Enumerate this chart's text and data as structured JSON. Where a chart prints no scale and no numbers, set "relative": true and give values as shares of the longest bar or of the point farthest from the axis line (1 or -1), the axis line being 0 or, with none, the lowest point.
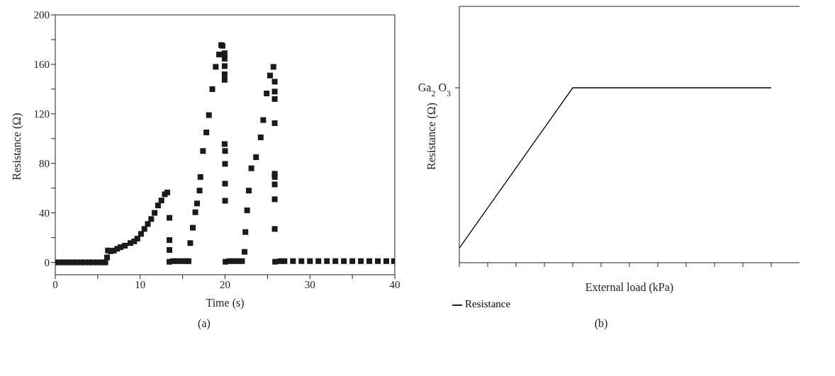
{
  "chart_data": [
    {
      "type": "scatter",
      "xlabel": "Time (s)",
      "ylabel": "Resistance (Ω)",
      "annotations": [
        "(a)"
      ],
      "marker": "square",
      "grid": false,
      "legend": false,
      "xlim": [
        0,
        40
      ],
      "xticks": [
        0,
        {
          "value": 5,
          "label": null
        },
        10,
        {
          "value": 15,
          "label": null
        },
        20,
        {
          "value": 25,
          "label": null
        },
        30,
        {
          "value": 35,
          "label": null
        },
        40
      ],
      "ylim": [
        -10,
        200
      ],
      "yticks": [
        0,
        {
          "value": 20,
          "label": null
        },
        40,
        {
          "value": 60,
          "label": null
        },
        80,
        {
          "value": 100,
          "label": null
        },
        120,
        {
          "value": 140,
          "label": null
        },
        160,
        {
          "value": 180,
          "label": null
        },
        200
      ],
      "series": [
        {
          "color": "#1a1a1a",
          "x": [
            0,
            0.5,
            1,
            1.5,
            2,
            2.5,
            3,
            3.5,
            4,
            4.5,
            5,
            5.5,
            5.9,
            6.1,
            6.2,
            6.5,
            6.9,
            7.3,
            7.7,
            8.2,
            8.85,
            9.3,
            9.67,
            10.1,
            10.5,
            10.9,
            11.3,
            11.7,
            12.1,
            12.5,
            12.9,
            13.2,
            13.45,
            13.45,
            13.45,
            13.45,
            13.9,
            14.4,
            14.9,
            15.4,
            15.7,
            15.9,
            16.2,
            16.5,
            16.7,
            17.0,
            17.1,
            17.4,
            17.8,
            18.1,
            18.5,
            18.9,
            19.3,
            19.55,
            19.7,
            19.95,
            19.95,
            19.95,
            19.95,
            19.95,
            19.95,
            20,
            20,
            20,
            20,
            20.05,
            20.5,
            21,
            21.5,
            22,
            22.3,
            22.4,
            22.6,
            22.8,
            23.1,
            23.65,
            24.2,
            24.5,
            24.9,
            25.3,
            25.7,
            25.85,
            25.85,
            25.85,
            25.85,
            25.85,
            25.85,
            25.85,
            25.85,
            25.85,
            25.9,
            26.5,
            27,
            28,
            29,
            30,
            31,
            32,
            33,
            34,
            35,
            36,
            37,
            38,
            39,
            39.9
          ],
          "values": [
            0,
            0,
            0,
            0,
            0,
            0,
            0,
            0,
            0,
            0,
            0,
            0,
            0,
            4,
            9.6,
            9,
            9.5,
            11,
            12.3,
            13.5,
            15.6,
            17,
            19.2,
            23,
            27,
            31,
            35,
            40,
            46,
            50,
            55,
            56.5,
            36,
            18,
            10,
            0.5,
            1,
            1,
            1,
            1,
            1,
            15.6,
            28,
            40.5,
            47.6,
            58,
            69,
            90,
            105,
            119,
            140,
            158,
            168,
            175.6,
            175,
            169,
            164.6,
            158.6,
            152,
            147.5,
            95.6,
            90,
            79.6,
            63.6,
            49.8,
            0.5,
            1,
            1,
            1,
            1,
            8.5,
            24.5,
            42,
            58,
            76,
            85,
            101,
            115,
            136.5,
            151,
            158,
            146,
            138,
            132,
            112.5,
            71.6,
            69,
            63,
            51,
            27,
            0.5,
            1,
            1,
            1,
            1,
            1,
            1,
            1,
            1,
            1,
            1,
            1,
            1,
            1,
            1,
            1
          ]
        }
      ]
    },
    {
      "type": "line",
      "xlabel": "External load (kPa)",
      "ylabel": "Resistance (Ω)",
      "relative": true,
      "legend": "bottom left",
      "annotations": [
        "Ga$_{2}$O$_{3}$",
        "(b)"
      ],
      "categories": [
        null,
        null,
        null,
        null,
        null,
        null,
        null,
        null,
        null,
        null,
        null,
        null
      ],
      "series": [
        {
          "name": "Resistance",
          "color": "#000000",
          "values": [
            0.084,
            0.313,
            0.542,
            0.771,
            1,
            1,
            1,
            1,
            1,
            1,
            1,
            1
          ]
        }
      ]
    }
  ]
}
